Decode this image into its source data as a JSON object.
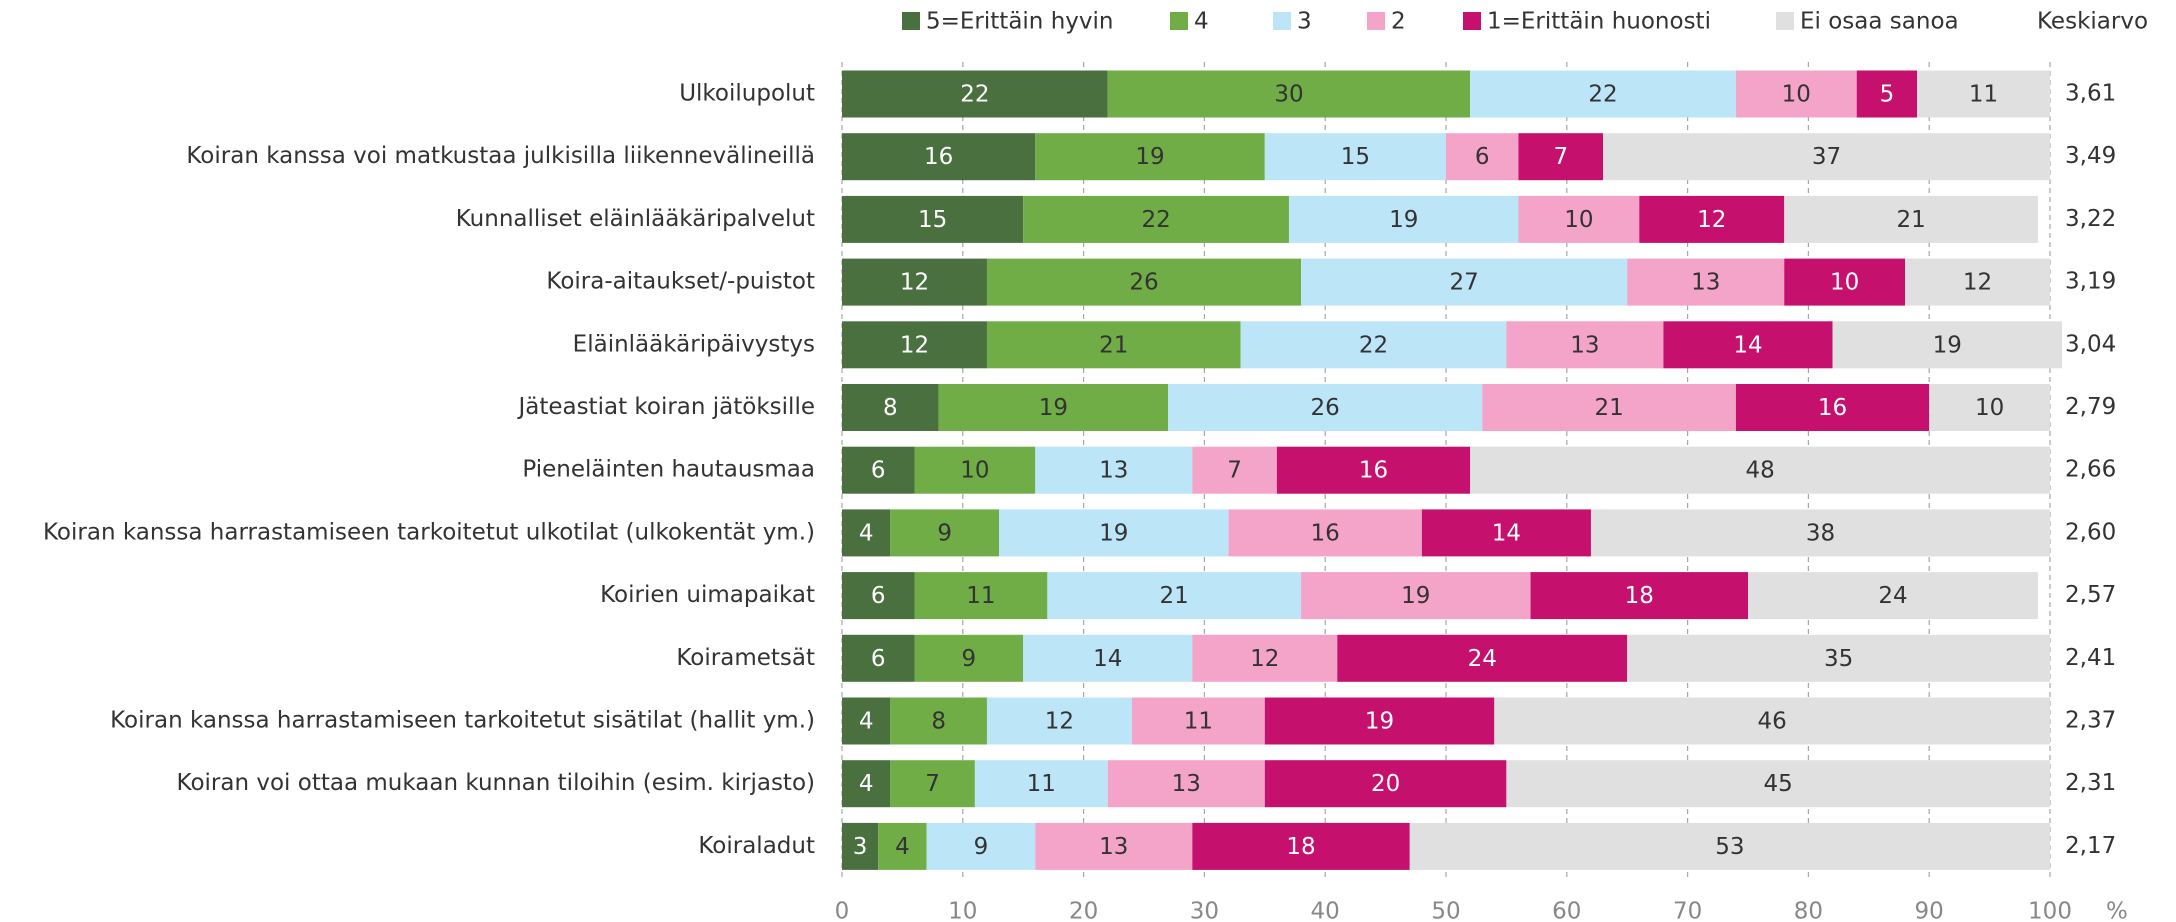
{
  "chart_data": {
    "type": "stacked_barh",
    "categories": [
      "Ulkoilupolut",
      "Koiran kanssa voi matkustaa julkisilla liikennevälineillä",
      "Kunnalliset eläinlääkäripalvelut",
      "Koira-aitaukset/-puistot",
      "Eläinlääkäripäivystys",
      "Jäteastiat koiran jätöksille",
      "Pieneläinten hautausmaa",
      "Koiran kanssa harrastamiseen tarkoitetut ulkotilat (ulkokentät ym.)",
      "Koirien uimapaikat",
      "Koirametsät",
      "Koiran kanssa harrastamiseen tarkoitetut sisätilat (hallit ym.)",
      "Koiran voi ottaa mukaan kunnan tiloihin (esim. kirjasto)",
      "Koiraladut"
    ],
    "series": [
      {
        "name": "5=Erittäin hyvin",
        "color": "#4a7040",
        "values": [
          22,
          16,
          15,
          12,
          12,
          8,
          6,
          4,
          6,
          6,
          4,
          4,
          3
        ]
      },
      {
        "name": "4",
        "color": "#70ad47",
        "values": [
          30,
          19,
          22,
          26,
          21,
          19,
          10,
          9,
          11,
          9,
          8,
          7,
          4
        ]
      },
      {
        "name": "3",
        "color": "#bde5f8",
        "values": [
          22,
          15,
          19,
          27,
          22,
          26,
          13,
          19,
          21,
          14,
          12,
          11,
          9
        ]
      },
      {
        "name": "2",
        "color": "#f4a3c9",
        "values": [
          10,
          6,
          10,
          13,
          13,
          21,
          7,
          16,
          19,
          12,
          11,
          13,
          13
        ]
      },
      {
        "name": "1=Erittäin huonosti",
        "color": "#c5106d",
        "values": [
          5,
          7,
          12,
          10,
          14,
          16,
          16,
          14,
          18,
          24,
          19,
          20,
          18
        ]
      },
      {
        "name": "Ei osaa sanoa",
        "color": "#e0e0e0",
        "values": [
          11,
          37,
          21,
          12,
          19,
          10,
          48,
          38,
          24,
          35,
          46,
          45,
          53
        ]
      }
    ],
    "averages": {
      "name": "Keskiarvo",
      "values": [
        3.61,
        3.49,
        3.22,
        3.19,
        3.04,
        2.79,
        2.66,
        2.6,
        2.57,
        2.41,
        2.37,
        2.31,
        2.17
      ],
      "value_labels": [
        "3,61",
        "3,49",
        "3,22",
        "3,19",
        "3,04",
        "2,79",
        "2,66",
        "2,60",
        "2,57",
        "2,41",
        "2,37",
        "2,31",
        "2,17"
      ]
    },
    "xlim": [
      0,
      100
    ],
    "xticks": [
      0,
      10,
      20,
      30,
      40,
      50,
      60,
      70,
      80,
      90,
      100
    ],
    "xlabel": "%",
    "grid": true
  }
}
